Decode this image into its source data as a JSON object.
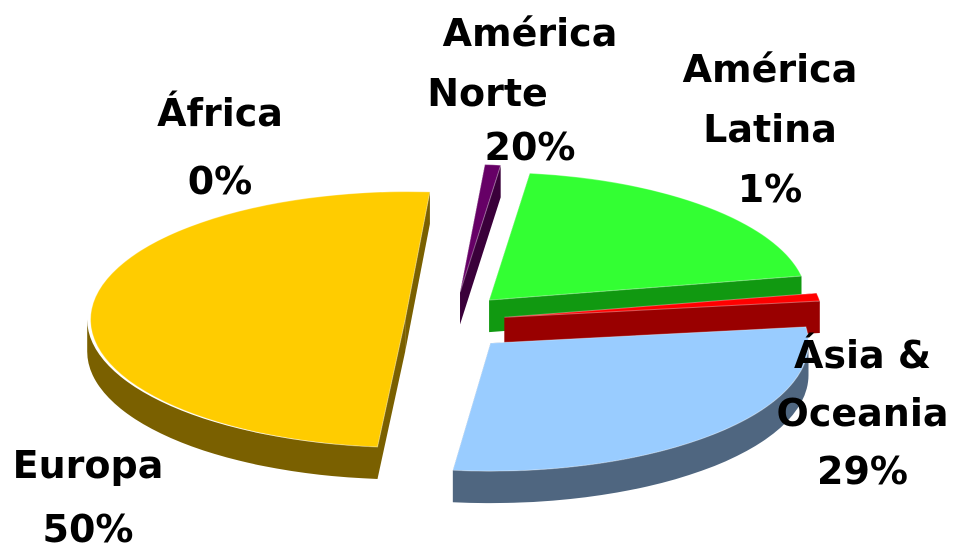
{
  "chart_data": {
    "type": "pie",
    "title": "",
    "categories": [
      "Europa",
      "África",
      "América Norte",
      "América Latina",
      "Ásia & Oceania"
    ],
    "values": [
      50,
      0.3,
      20,
      1,
      29
    ],
    "value_labels": [
      "50%",
      "0%",
      "20%",
      "1%",
      "29%"
    ],
    "label_lines": [
      [
        "Europa"
      ],
      [
        "África"
      ],
      [
        "América",
        "Norte"
      ],
      [
        "América",
        "Latina"
      ],
      [
        "Ásia &",
        "Oceania"
      ]
    ],
    "colors": [
      "#ffcc00",
      "#660066",
      "#33ff33",
      "#ff0000",
      "#99ccff"
    ],
    "side_colors": [
      "#7a6000",
      "#3a003a",
      "#119911",
      "#990000",
      "#4f6680"
    ],
    "legend": "none",
    "style": "exploded-3d"
  }
}
